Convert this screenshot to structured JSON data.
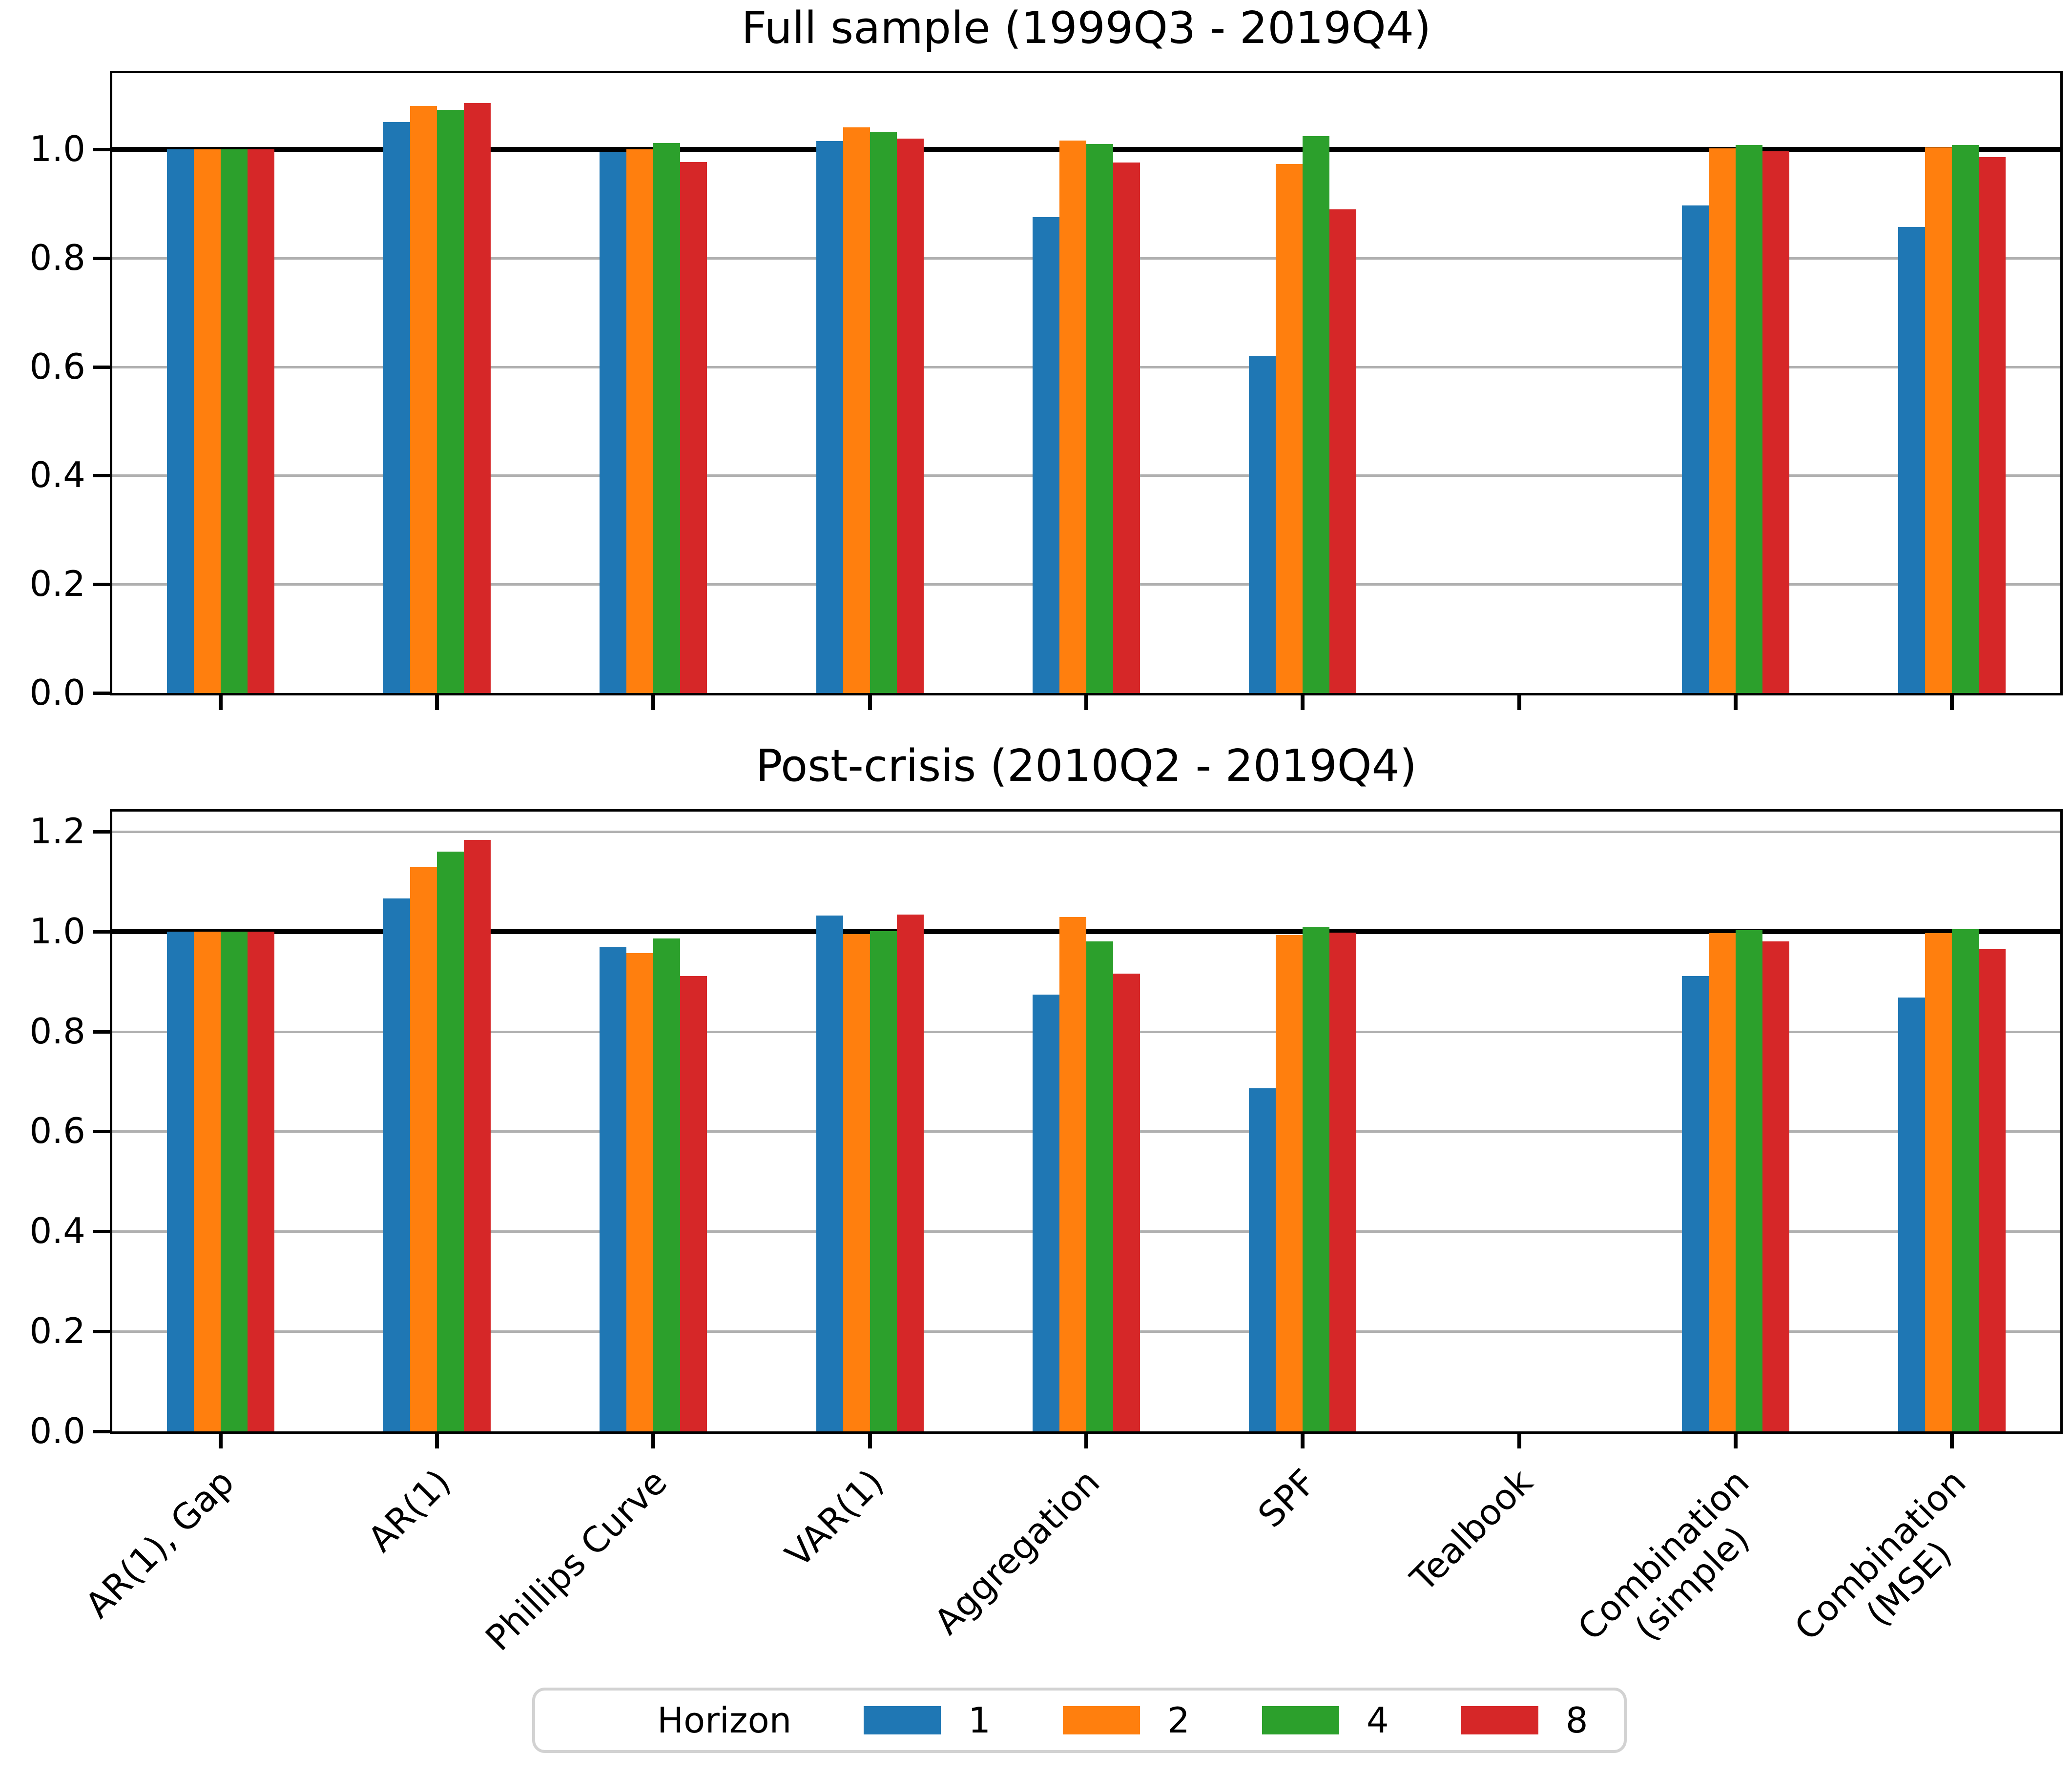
{
  "legend": {
    "title": "Horizon",
    "entries": [
      {
        "label": "1",
        "color": "#1f77b4"
      },
      {
        "label": "2",
        "color": "#ff7f0e"
      },
      {
        "label": "4",
        "color": "#2ca02c"
      },
      {
        "label": "8",
        "color": "#d62728"
      }
    ]
  },
  "colors": {
    "grid": "#b0b0b0",
    "baseline": "#000000",
    "legend_border": "#d2d2d2",
    "background": "#ffffff"
  },
  "chart_data": [
    {
      "type": "bar",
      "title": "Full sample (1999Q3 - 2019Q4)",
      "categories": [
        "AR(1), Gap",
        "AR(1)",
        "Phillips Curve",
        "VAR(1)",
        "Aggregation",
        "SPF",
        "Tealbook",
        "Combination\n(simple)",
        "Combination\n(MSE)"
      ],
      "series": [
        {
          "name": "1",
          "color": "#1f77b4",
          "values": [
            1.0,
            1.05,
            0.995,
            1.015,
            0.875,
            0.62,
            null,
            0.897,
            0.857
          ]
        },
        {
          "name": "2",
          "color": "#ff7f0e",
          "values": [
            1.0,
            1.08,
            1.0,
            1.04,
            1.016,
            0.973,
            null,
            1.002,
            1.004
          ]
        },
        {
          "name": "4",
          "color": "#2ca02c",
          "values": [
            1.0,
            1.073,
            1.012,
            1.032,
            1.01,
            1.024,
            null,
            1.008,
            1.008
          ]
        },
        {
          "name": "8",
          "color": "#d62728",
          "values": [
            1.0,
            1.085,
            0.977,
            1.02,
            0.976,
            0.89,
            null,
            0.996,
            0.986
          ]
        }
      ],
      "xlabel": "",
      "ylabel": "",
      "ylim": [
        0,
        1.14
      ],
      "yticks": [
        0.0,
        0.2,
        0.4,
        0.6,
        0.8,
        1.0
      ],
      "baseline": 1.0,
      "grid": true,
      "legend_position": "below-figure",
      "show_xticklabels": false
    },
    {
      "type": "bar",
      "title": "Post-crisis (2010Q2 - 2019Q4)",
      "categories": [
        "AR(1), Gap",
        "AR(1)",
        "Phillips Curve",
        "VAR(1)",
        "Aggregation",
        "SPF",
        "Tealbook",
        "Combination\n(simple)",
        "Combination\n(MSE)"
      ],
      "series": [
        {
          "name": "1",
          "color": "#1f77b4",
          "values": [
            1.0,
            1.066,
            0.969,
            1.032,
            0.874,
            0.686,
            null,
            0.911,
            0.868
          ]
        },
        {
          "name": "2",
          "color": "#ff7f0e",
          "values": [
            1.0,
            1.129,
            0.957,
            0.995,
            1.029,
            0.993,
            null,
            0.997,
            0.997
          ]
        },
        {
          "name": "4",
          "color": "#2ca02c",
          "values": [
            1.0,
            1.16,
            0.986,
            1.001,
            0.98,
            1.01,
            null,
            1.003,
            1.005
          ]
        },
        {
          "name": "8",
          "color": "#d62728",
          "values": [
            1.0,
            1.183,
            0.911,
            1.034,
            0.916,
            0.998,
            null,
            0.98,
            0.965
          ]
        }
      ],
      "xlabel": "",
      "ylabel": "",
      "ylim": [
        0,
        1.24
      ],
      "yticks": [
        0.0,
        0.2,
        0.4,
        0.6,
        0.8,
        1.0,
        1.2
      ],
      "baseline": 1.0,
      "grid": true,
      "legend_position": "below-figure",
      "show_xticklabels": true
    }
  ]
}
